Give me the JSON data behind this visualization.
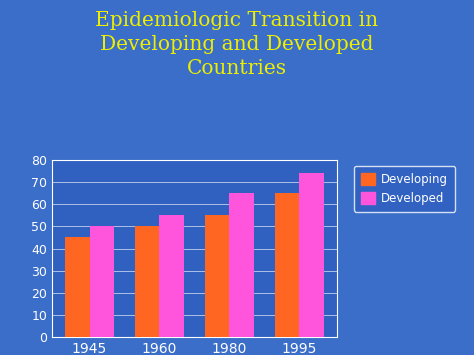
{
  "title_line1": "Epidemiologic Transition in",
  "title_line2": "Developing and Developed",
  "title_line3": "Countries",
  "title_color": "#EEEE00",
  "title_fontsize": 14.5,
  "categories": [
    "1945",
    "1960",
    "1980",
    "1995"
  ],
  "developing": [
    45,
    50,
    55,
    65
  ],
  "developed": [
    50,
    55,
    65,
    74
  ],
  "developing_color": "#FF6622",
  "developed_color": "#FF55DD",
  "outer_bg": "#3B6EC8",
  "chart_bg": "#3060C0",
  "ylim": [
    0,
    80
  ],
  "yticks": [
    0,
    10,
    20,
    30,
    40,
    50,
    60,
    70,
    80
  ],
  "tick_color": "white",
  "grid_color": "white",
  "legend_labels": [
    "Developing",
    "Developed"
  ],
  "bar_width": 0.35,
  "xtick_fontsize": 10,
  "ytick_fontsize": 9
}
